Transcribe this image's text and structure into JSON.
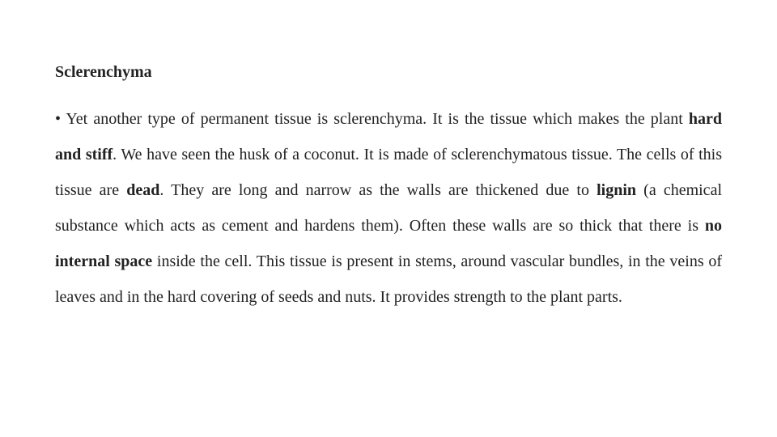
{
  "colors": {
    "background": "#ffffff",
    "text": "#222222"
  },
  "typography": {
    "font_family": "Times New Roman, Times, serif",
    "heading_fontsize_pt": 15,
    "body_fontsize_pt": 15,
    "line_height": 2.2,
    "alignment": "justify"
  },
  "heading": "Sclerenchyma",
  "bullet": "• ",
  "paragraph": {
    "p1": "Yet another type of permanent tissue is sclerenchyma. It is the tissue which makes the plant ",
    "b1": "hard and stiff",
    "p2": ". We have seen the husk of a coconut. It is made of sclerenchymatous tissue. The cells of this tissue are ",
    "b2": "dead",
    "p3": ". They are long and narrow as the walls are thickened due to ",
    "b3": "lignin",
    "p4": " (a chemical substance which acts as cement and hardens them). Often these walls are so thick that there is ",
    "b4": "no internal space ",
    "p5": "inside the cell. This tissue is present in stems, around vascular bundles, in the veins of leaves and in the hard covering of seeds and nuts. It provides strength to the plant parts."
  }
}
